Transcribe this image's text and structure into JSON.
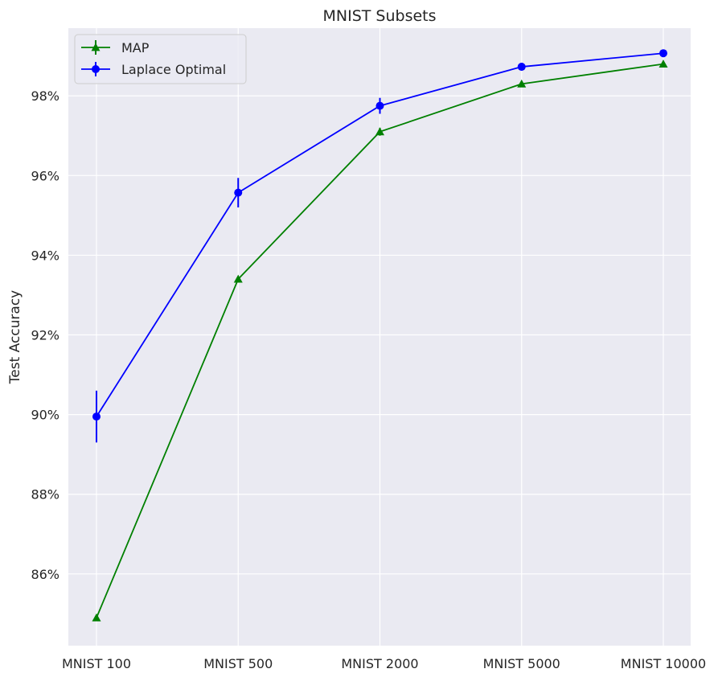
{
  "chart_data": {
    "type": "line",
    "title": "MNIST Subsets",
    "xlabel": "",
    "ylabel": "Test Accuracy",
    "categories": [
      "MNIST 100",
      "MNIST 500",
      "MNIST 2000",
      "MNIST 5000",
      "MNIST 10000"
    ],
    "ylim": [
      84.2,
      99.7
    ],
    "yticks": [
      86,
      88,
      90,
      92,
      94,
      96,
      98
    ],
    "ytick_labels": [
      "86%",
      "88%",
      "90%",
      "92%",
      "94%",
      "96%",
      "98%"
    ],
    "grid": true,
    "legend_position": "top-left",
    "series": [
      {
        "name": "MAP",
        "values": [
          84.9,
          93.4,
          97.1,
          98.3,
          98.8
        ],
        "errors": [
          0.03,
          0.05,
          0.1,
          0.04,
          0.03
        ],
        "color": "#008000",
        "marker": "triangle"
      },
      {
        "name": "Laplace Optimal",
        "values": [
          89.95,
          95.57,
          97.75,
          98.73,
          99.07
        ],
        "errors": [
          0.65,
          0.37,
          0.2,
          0.1,
          0.04
        ],
        "color": "#0000ff",
        "marker": "circle"
      }
    ],
    "background_color": "#eaeaf2"
  }
}
